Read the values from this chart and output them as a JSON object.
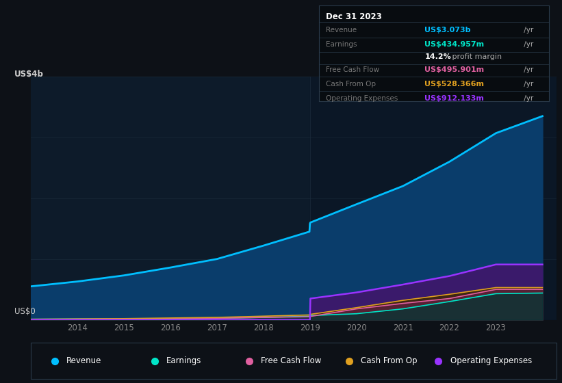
{
  "background_color": "#0d1117",
  "plot_bg_color": "#0d1b2a",
  "years": [
    2013,
    2014,
    2015,
    2016,
    2017,
    2018,
    2018.99,
    2019,
    2019.01,
    2020,
    2021,
    2022,
    2023,
    2024
  ],
  "revenue": [
    0.55,
    0.63,
    0.73,
    0.86,
    1.0,
    1.22,
    1.45,
    1.58,
    1.6,
    1.9,
    2.2,
    2.6,
    3.07,
    3.35
  ],
  "earnings": [
    0.01,
    0.015,
    0.015,
    0.02,
    0.025,
    0.04,
    0.06,
    0.07,
    0.07,
    0.1,
    0.18,
    0.3,
    0.43,
    0.44
  ],
  "free_cash_flow": [
    0.005,
    0.01,
    0.015,
    0.02,
    0.025,
    0.04,
    0.05,
    0.055,
    0.055,
    0.18,
    0.27,
    0.35,
    0.5,
    0.5
  ],
  "cash_from_op": [
    0.01,
    0.015,
    0.02,
    0.03,
    0.04,
    0.06,
    0.08,
    0.09,
    0.09,
    0.2,
    0.32,
    0.42,
    0.53,
    0.53
  ],
  "op_expenses": [
    0.0,
    0.0,
    0.0,
    0.0,
    0.0,
    0.0,
    0.0,
    0.0,
    0.35,
    0.45,
    0.58,
    0.72,
    0.91,
    0.91
  ],
  "revenue_color": "#00bfff",
  "earnings_color": "#00e5c8",
  "fcf_color": "#e060a0",
  "cashop_color": "#e0a020",
  "opex_color": "#9933ff",
  "revenue_fill": "#0a3d6b",
  "earnings_fill": "#0a3535",
  "fcf_fill": "#602040",
  "cashop_fill": "#402800",
  "opex_fill": "#3a1a6b",
  "ylabel_text": "US$4b",
  "y0_text": "US$0",
  "grid_color": "#1a2a3a",
  "xticks": [
    2014,
    2015,
    2016,
    2017,
    2018,
    2019,
    2020,
    2021,
    2022,
    2023
  ],
  "info_box": {
    "title": "Dec 31 2023",
    "rows": [
      {
        "label": "Revenue",
        "value": "US$3.073b",
        "color": "#00bfff"
      },
      {
        "label": "Earnings",
        "value": "US$434.957m",
        "color": "#00e5c8"
      },
      {
        "label": "",
        "value": "14.2%",
        "color": "#ffffff",
        "extra": " profit margin"
      },
      {
        "label": "Free Cash Flow",
        "value": "US$495.901m",
        "color": "#e060a0"
      },
      {
        "label": "Cash From Op",
        "value": "US$528.366m",
        "color": "#e0a020"
      },
      {
        "label": "Operating Expenses",
        "value": "US$912.133m",
        "color": "#9933ff"
      }
    ]
  },
  "legend": [
    {
      "label": "Revenue",
      "color": "#00bfff"
    },
    {
      "label": "Earnings",
      "color": "#00e5c8"
    },
    {
      "label": "Free Cash Flow",
      "color": "#e060a0"
    },
    {
      "label": "Cash From Op",
      "color": "#e0a020"
    },
    {
      "label": "Operating Expenses",
      "color": "#9933ff"
    }
  ]
}
